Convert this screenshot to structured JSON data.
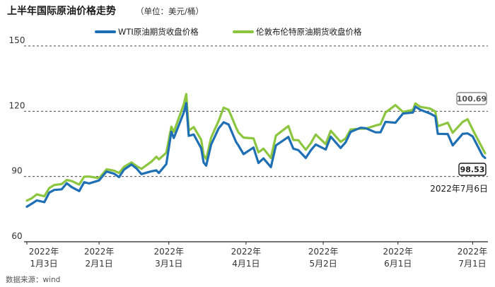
{
  "title": "上半年国际原油价格走势",
  "unit": "（单位：美元/桶）",
  "source": "数据来源：wind",
  "colors": {
    "wti": "#1f6fb4",
    "brent": "#8cc63f",
    "text": "#1a1a1a",
    "grid": "#444444"
  },
  "chart_data": {
    "type": "line",
    "title": "上半年国际原油价格走势",
    "ylim": [
      60,
      150
    ],
    "yticks": [
      60,
      90,
      120,
      150
    ],
    "grid": "dashed horizontal at 90, 120, 150",
    "legend_position": "top",
    "x_range": [
      "2022-01-03",
      "2022-07-06"
    ],
    "x_tick_labels": [
      {
        "date": "2022-01-03",
        "line1": "2022年",
        "line2": "1月3日"
      },
      {
        "date": "2022-02-01",
        "line1": "2022年",
        "line2": "2月1日"
      },
      {
        "date": "2022-03-01",
        "line1": "2022年",
        "line2": "3月1日"
      },
      {
        "date": "2022-04-01",
        "line1": "2022年",
        "line2": "4月1日"
      },
      {
        "date": "2022-05-02",
        "line1": "2022年",
        "line2": "5月2日"
      },
      {
        "date": "2022-06-01",
        "line1": "2022年",
        "line2": "6月1日"
      },
      {
        "date": "2022-07-01",
        "line1": "2022年",
        "line2": "7月1日"
      }
    ],
    "annotations": {
      "brent_last": "100.69",
      "wti_last": "98.53",
      "last_date": "2022年7月6日"
    },
    "series": [
      {
        "name": "WTI原油期货收盘价格",
        "color": "#1f6fb4",
        "points": [
          [
            "2022-01-03",
            76.1
          ],
          [
            "2022-01-05",
            77.5
          ],
          [
            "2022-01-07",
            79.0
          ],
          [
            "2022-01-10",
            78.2
          ],
          [
            "2022-01-12",
            82.6
          ],
          [
            "2022-01-14",
            83.8
          ],
          [
            "2022-01-17",
            84.1
          ],
          [
            "2022-01-19",
            86.9
          ],
          [
            "2022-01-21",
            85.1
          ],
          [
            "2022-01-24",
            83.3
          ],
          [
            "2022-01-26",
            87.4
          ],
          [
            "2022-01-28",
            86.8
          ],
          [
            "2022-02-01",
            88.2
          ],
          [
            "2022-02-04",
            92.3
          ],
          [
            "2022-02-07",
            91.3
          ],
          [
            "2022-02-09",
            89.7
          ],
          [
            "2022-02-11",
            93.1
          ],
          [
            "2022-02-14",
            95.5
          ],
          [
            "2022-02-16",
            93.7
          ],
          [
            "2022-02-18",
            91.1
          ],
          [
            "2022-02-22",
            92.4
          ],
          [
            "2022-02-24",
            92.8
          ],
          [
            "2022-02-25",
            91.6
          ],
          [
            "2022-02-28",
            95.7
          ],
          [
            "2022-03-02",
            110.6
          ],
          [
            "2022-03-03",
            107.7
          ],
          [
            "2022-03-07",
            119.4
          ],
          [
            "2022-03-08",
            123.7
          ],
          [
            "2022-03-09",
            108.7
          ],
          [
            "2022-03-11",
            109.3
          ],
          [
            "2022-03-14",
            103.0
          ],
          [
            "2022-03-15",
            96.4
          ],
          [
            "2022-03-16",
            95.0
          ],
          [
            "2022-03-18",
            104.7
          ],
          [
            "2022-03-21",
            112.1
          ],
          [
            "2022-03-23",
            114.9
          ],
          [
            "2022-03-25",
            113.9
          ],
          [
            "2022-03-28",
            105.9
          ],
          [
            "2022-03-29",
            104.2
          ],
          [
            "2022-03-31",
            100.3
          ],
          [
            "2022-04-04",
            103.3
          ],
          [
            "2022-04-06",
            96.2
          ],
          [
            "2022-04-08",
            98.3
          ],
          [
            "2022-04-11",
            94.3
          ],
          [
            "2022-04-13",
            104.3
          ],
          [
            "2022-04-18",
            108.2
          ],
          [
            "2022-04-20",
            102.8
          ],
          [
            "2022-04-22",
            102.1
          ],
          [
            "2022-04-25",
            98.5
          ],
          [
            "2022-04-27",
            102.0
          ],
          [
            "2022-04-29",
            104.7
          ],
          [
            "2022-05-03",
            102.4
          ],
          [
            "2022-05-05",
            108.3
          ],
          [
            "2022-05-09",
            103.1
          ],
          [
            "2022-05-11",
            105.7
          ],
          [
            "2022-05-13",
            110.5
          ],
          [
            "2022-05-17",
            112.4
          ],
          [
            "2022-05-19",
            112.2
          ],
          [
            "2022-05-23",
            110.3
          ],
          [
            "2022-05-25",
            110.3
          ],
          [
            "2022-05-27",
            115.1
          ],
          [
            "2022-05-31",
            114.7
          ],
          [
            "2022-06-03",
            118.9
          ],
          [
            "2022-06-07",
            119.4
          ],
          [
            "2022-06-08",
            122.1
          ],
          [
            "2022-06-10",
            120.7
          ],
          [
            "2022-06-14",
            118.9
          ],
          [
            "2022-06-16",
            117.6
          ],
          [
            "2022-06-17",
            109.6
          ],
          [
            "2022-06-21",
            109.5
          ],
          [
            "2022-06-23",
            104.3
          ],
          [
            "2022-06-27",
            109.6
          ],
          [
            "2022-06-29",
            109.8
          ],
          [
            "2022-07-01",
            108.4
          ],
          [
            "2022-07-05",
            99.5
          ],
          [
            "2022-07-06",
            98.53
          ]
        ]
      },
      {
        "name": "伦敦布伦特原油期货收盘价格",
        "color": "#8cc63f",
        "points": [
          [
            "2022-01-03",
            78.9
          ],
          [
            "2022-01-05",
            80.0
          ],
          [
            "2022-01-07",
            81.8
          ],
          [
            "2022-01-10",
            80.9
          ],
          [
            "2022-01-12",
            84.7
          ],
          [
            "2022-01-14",
            86.1
          ],
          [
            "2022-01-17",
            86.5
          ],
          [
            "2022-01-19",
            88.4
          ],
          [
            "2022-01-21",
            87.9
          ],
          [
            "2022-01-24",
            86.3
          ],
          [
            "2022-01-26",
            89.9
          ],
          [
            "2022-01-28",
            90.0
          ],
          [
            "2022-02-01",
            89.2
          ],
          [
            "2022-02-04",
            93.3
          ],
          [
            "2022-02-07",
            92.7
          ],
          [
            "2022-02-09",
            91.6
          ],
          [
            "2022-02-11",
            94.4
          ],
          [
            "2022-02-14",
            96.5
          ],
          [
            "2022-02-16",
            94.8
          ],
          [
            "2022-02-18",
            93.5
          ],
          [
            "2022-02-22",
            96.8
          ],
          [
            "2022-02-24",
            99.1
          ],
          [
            "2022-02-25",
            97.9
          ],
          [
            "2022-02-28",
            100.9
          ],
          [
            "2022-03-02",
            112.9
          ],
          [
            "2022-03-03",
            110.5
          ],
          [
            "2022-03-07",
            123.2
          ],
          [
            "2022-03-08",
            127.9
          ],
          [
            "2022-03-09",
            111.1
          ],
          [
            "2022-03-11",
            112.7
          ],
          [
            "2022-03-14",
            106.9
          ],
          [
            "2022-03-15",
            99.9
          ],
          [
            "2022-03-16",
            98.0
          ],
          [
            "2022-03-18",
            107.9
          ],
          [
            "2022-03-21",
            115.6
          ],
          [
            "2022-03-23",
            121.6
          ],
          [
            "2022-03-25",
            120.7
          ],
          [
            "2022-03-28",
            112.5
          ],
          [
            "2022-03-29",
            110.2
          ],
          [
            "2022-03-31",
            107.9
          ],
          [
            "2022-04-04",
            107.5
          ],
          [
            "2022-04-06",
            101.1
          ],
          [
            "2022-04-08",
            102.8
          ],
          [
            "2022-04-11",
            98.5
          ],
          [
            "2022-04-13",
            108.8
          ],
          [
            "2022-04-18",
            113.2
          ],
          [
            "2022-04-20",
            106.8
          ],
          [
            "2022-04-22",
            106.7
          ],
          [
            "2022-04-25",
            102.3
          ],
          [
            "2022-04-27",
            105.3
          ],
          [
            "2022-04-29",
            109.3
          ],
          [
            "2022-05-03",
            104.9
          ],
          [
            "2022-05-05",
            111.0
          ],
          [
            "2022-05-09",
            105.9
          ],
          [
            "2022-05-11",
            107.5
          ],
          [
            "2022-05-13",
            111.6
          ],
          [
            "2022-05-17",
            112.0
          ],
          [
            "2022-05-19",
            112.0
          ],
          [
            "2022-05-23",
            113.4
          ],
          [
            "2022-05-25",
            114.0
          ],
          [
            "2022-05-27",
            119.4
          ],
          [
            "2022-05-31",
            122.8
          ],
          [
            "2022-06-03",
            119.7
          ],
          [
            "2022-06-07",
            120.6
          ],
          [
            "2022-06-08",
            123.6
          ],
          [
            "2022-06-10",
            122.0
          ],
          [
            "2022-06-14",
            121.2
          ],
          [
            "2022-06-16",
            119.8
          ],
          [
            "2022-06-17",
            113.1
          ],
          [
            "2022-06-21",
            114.7
          ],
          [
            "2022-06-23",
            110.1
          ],
          [
            "2022-06-27",
            115.1
          ],
          [
            "2022-06-29",
            116.3
          ],
          [
            "2022-07-01",
            111.6
          ],
          [
            "2022-07-05",
            102.8
          ],
          [
            "2022-07-06",
            100.69
          ]
        ]
      }
    ]
  }
}
